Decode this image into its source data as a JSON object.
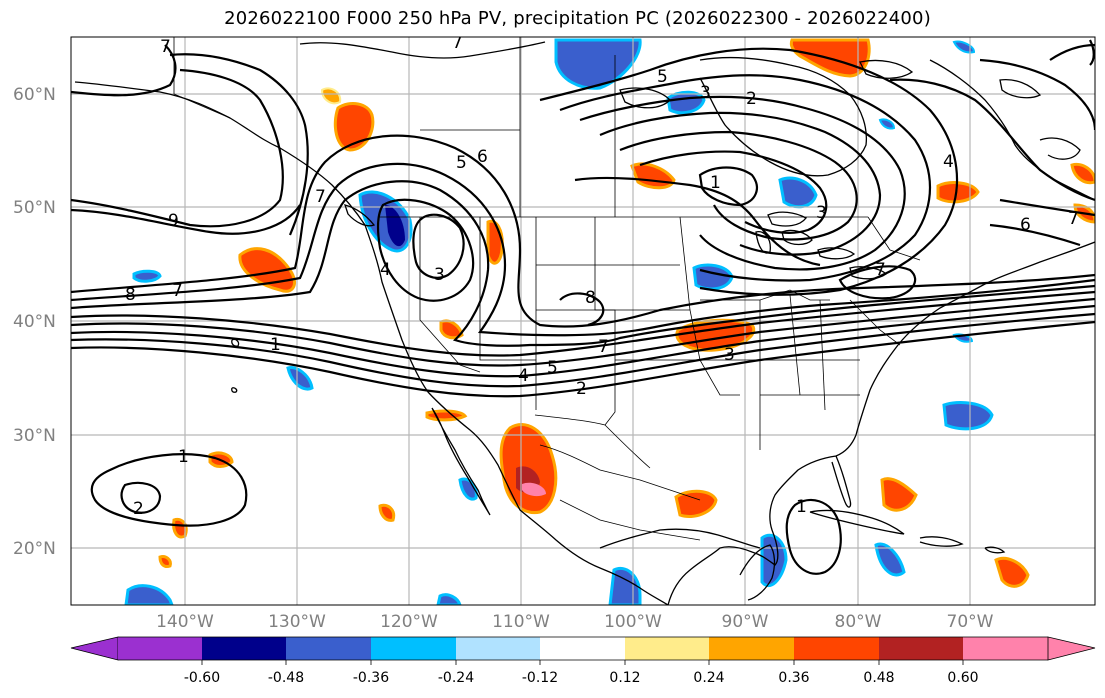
{
  "title": "2026022100 F000 250 hPa PV, precipitation PC (2026022300 - 2026022400)",
  "lat_labels": [
    "60°N",
    "50°N",
    "40°N",
    "30°N",
    "20°N"
  ],
  "lon_labels": [
    "140°W",
    "130°W",
    "120°W",
    "110°W",
    "100°W",
    "90°W",
    "80°W",
    "70°W"
  ],
  "colorbar": {
    "ticks": [
      "-0.60",
      "-0.48",
      "-0.36",
      "-0.24",
      "-0.12",
      "0.12",
      "0.24",
      "0.36",
      "0.48",
      "0.60"
    ],
    "colors": [
      "#9b30d0",
      "#00008b",
      "#3a5fcd",
      "#00bfff",
      "#b0e2ff",
      "#ffffff",
      "#ffec8b",
      "#ffa500",
      "#ff4500",
      "#b22222",
      "#ff82ab"
    ]
  },
  "contour_labels": [
    {
      "text": "7"
    },
    {
      "text": "7"
    },
    {
      "text": "5"
    },
    {
      "text": "3"
    },
    {
      "text": "2"
    },
    {
      "text": "9"
    },
    {
      "text": "8"
    },
    {
      "text": "7"
    },
    {
      "text": "1"
    },
    {
      "text": "5"
    },
    {
      "text": "6"
    },
    {
      "text": "4"
    },
    {
      "text": "3"
    },
    {
      "text": "7"
    },
    {
      "text": "3"
    },
    {
      "text": "8"
    },
    {
      "text": "7"
    },
    {
      "text": "5"
    },
    {
      "text": "4"
    },
    {
      "text": "2"
    },
    {
      "text": "3"
    },
    {
      "text": "4"
    },
    {
      "text": "6"
    },
    {
      "text": "7"
    },
    {
      "text": "7"
    },
    {
      "text": "1"
    },
    {
      "text": "1"
    },
    {
      "text": "2"
    },
    {
      "text": "1"
    }
  ]
}
